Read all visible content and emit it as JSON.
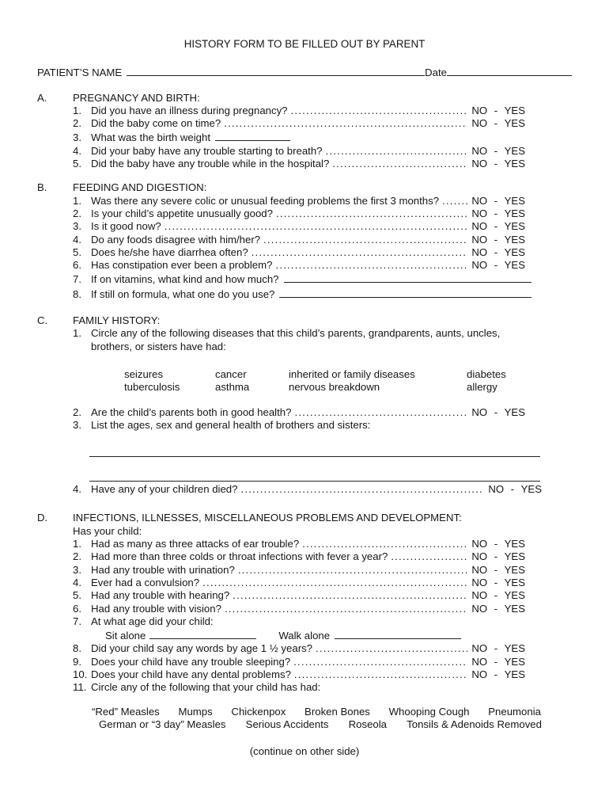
{
  "page": {
    "title": "HISTORY FORM TO BE FILLED OUT BY PARENT",
    "footer": "(continue on other side)"
  },
  "patient": {
    "name_label": "PATIENT’S NAME",
    "date_label": "Date"
  },
  "answers": {
    "no_yes": "NO - YES"
  },
  "section_a": {
    "letter": "A.",
    "heading": "PREGNANCY AND BIRTH:",
    "q1": {
      "num": "1.",
      "text": "Did you have an illness during pregnancy?"
    },
    "q2": {
      "num": "2.",
      "text": "Did the baby come on time?"
    },
    "q3": {
      "num": "3.",
      "text": "What was the birth weight"
    },
    "q4": {
      "num": "4.",
      "text": "Did your baby have any trouble starting to breath?"
    },
    "q5": {
      "num": "5.",
      "text": "Did the baby have any trouble while in the hospital?"
    }
  },
  "section_b": {
    "letter": "B.",
    "heading": "FEEDING AND DIGESTION:",
    "q1": {
      "num": "1.",
      "text": "Was there any severe colic or unusual feeding problems the first 3 months?"
    },
    "q2": {
      "num": "2.",
      "text": "Is your child’s appetite unusually good?"
    },
    "q3": {
      "num": "3.",
      "text": "Is it good now?"
    },
    "q4": {
      "num": "4.",
      "text": "Do any foods disagree with him/her?"
    },
    "q5": {
      "num": "5.",
      "text": "Does he/she have diarrhea often?"
    },
    "q6": {
      "num": "6.",
      "text": "Has constipation ever been a problem?"
    },
    "q7": {
      "num": "7.",
      "text": "If on vitamins, what kind and how much?"
    },
    "q8": {
      "num": "8.",
      "text": "If still on formula, what one do you use?"
    }
  },
  "section_c": {
    "letter": "C.",
    "heading": "FAMILY HISTORY:",
    "q1": {
      "num": "1.",
      "line1": "Circle any of the following diseases that this child’s parents, grandparents, aunts, uncles,",
      "line2": "brothers, or sisters have had:"
    },
    "diseases": {
      "row1": [
        "seizures",
        "cancer",
        "inherited or family diseases",
        "diabetes"
      ],
      "row2": [
        "tuberculosis",
        "asthma",
        "nervous breakdown",
        "allergy"
      ]
    },
    "q2": {
      "num": "2.",
      "text": "Are the child’s parents both in good health?"
    },
    "q3": {
      "num": "3.",
      "text": "List the ages, sex and general health of brothers and sisters:"
    },
    "q4": {
      "num": "4.",
      "text": "Have any of your children died?"
    }
  },
  "section_d": {
    "letter": "D.",
    "heading": "INFECTIONS, ILLNESSES, MISCELLANEOUS PROBLEMS AND DEVELOPMENT:",
    "intro": "Has your child:",
    "q1": {
      "num": "1.",
      "text": "Had as many as three attacks of ear trouble?"
    },
    "q2": {
      "num": "2.",
      "text": "Had more than three colds or throat infections with fever a year?"
    },
    "q3": {
      "num": "3.",
      "text": "Had any trouble with urination?"
    },
    "q4": {
      "num": "4.",
      "text": "Ever had a convulsion?"
    },
    "q5": {
      "num": "5.",
      "text": "Had any trouble with hearing?"
    },
    "q6": {
      "num": "6.",
      "text": "Had any trouble with vision?"
    },
    "q7": {
      "num": "7.",
      "text": "At what age did your child:",
      "sit_label": "Sit alone",
      "walk_label": "Walk alone"
    },
    "q8": {
      "num": "8.",
      "text": "Did your child say any words by age 1 ½ years?"
    },
    "q9": {
      "num": "9.",
      "text": "Does your child have any trouble sleeping?"
    },
    "q10": {
      "num": "10.",
      "text": "Does your child have any dental problems?"
    },
    "q11": {
      "num": "11.",
      "text": "Circle any of the following that your child has had:"
    },
    "illnesses": {
      "row1": [
        "“Red” Measles",
        "Mumps",
        "Chickenpox",
        "Broken Bones",
        "Whooping Cough",
        "Pneumonia"
      ],
      "row2": [
        "German or “3 day” Measles",
        "Serious Accidents",
        "Roseola",
        "Tonsils & Adenoids Removed"
      ]
    }
  }
}
